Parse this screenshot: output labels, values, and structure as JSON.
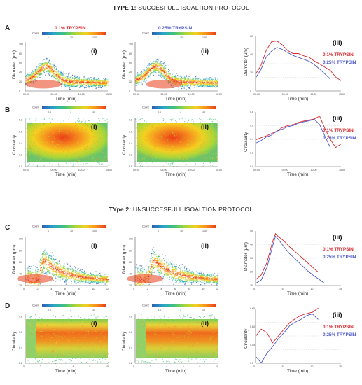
{
  "titles": {
    "type1_bold": "TYPE 1:",
    "type1_rest": " SUCCESFULL ISOALTION PROTOCOL",
    "type2_bold": "TYpe 2:",
    "type2_rest": " UNSUCCESFULL ISOALTION PROTOCOL"
  },
  "rows": [
    {
      "letter": "A"
    },
    {
      "letter": "B"
    },
    {
      "letter": "C"
    },
    {
      "letter": "D"
    }
  ],
  "headers": {
    "red": "0.1% TRYPSIN",
    "blue": "0.25% TRYPSIN"
  },
  "colors": {
    "red": "#d8262b",
    "blue": "#4b56c8"
  },
  "colorbar": {
    "label": "Count",
    "ticks_A": [
      "1",
      "10",
      "100"
    ],
    "ticks_B": [
      "0.1",
      "1",
      "10"
    ],
    "colors": [
      "#2b5fb0",
      "#2aa6c9",
      "#43c27b",
      "#a9d63a",
      "#f4d020",
      "#f6901e",
      "#ea3d17"
    ]
  },
  "panel_labels": {
    "i": "(i)",
    "ii": "(ii)",
    "iii": "(iii)"
  },
  "legend": {
    "red": "0.1% TRYPSIN",
    "blue": "0.25% TRYPSIN"
  },
  "chart_data": [
    {
      "id": "A",
      "type": "heatmap",
      "xlabel": "Time (min)",
      "ylabel": "Diameter (μm)",
      "xticks_1": [
        "00:00",
        "05:00",
        "10:00",
        "15:00"
      ],
      "yticks": [
        "0",
        "20",
        "40",
        "60",
        "80",
        "100"
      ],
      "ylim": [
        0,
        100
      ],
      "xlim": [
        0,
        16
      ],
      "ridge_1": {
        "x": [
          0,
          1,
          2,
          3,
          4,
          6,
          8,
          10,
          12,
          14,
          16
        ],
        "y": [
          18,
          22,
          40,
          48,
          40,
          32,
          28,
          26,
          24,
          23,
          22
        ]
      },
      "ridge_2": {
        "x": [
          0,
          2,
          4,
          6,
          8,
          10,
          12,
          14,
          16
        ],
        "y": [
          20,
          22,
          24,
          26,
          26,
          25,
          24,
          22,
          20
        ]
      },
      "line": {
        "xticks": [
          "00:00",
          "05:00",
          "10:00",
          "15:00"
        ],
        "yticks": [
          "0",
          "20",
          "40",
          "60"
        ],
        "ylim": [
          0,
          65
        ],
        "xlim": [
          0,
          16
        ],
        "series": [
          {
            "name": "0.1% TRYPSIN",
            "x": [
              0,
              1,
              2,
              3,
              4,
              5,
              6,
              7,
              8,
              9,
              10,
              11,
              12,
              13,
              14,
              15,
              16
            ],
            "y": [
              20,
              30,
              48,
              58,
              60,
              55,
              48,
              45,
              44,
              42,
              40,
              36,
              32,
              28,
              24,
              16,
              12
            ]
          },
          {
            "name": "0.25% TRYPSIN",
            "x": [
              0,
              1,
              2,
              3,
              4,
              5,
              6,
              7,
              8,
              9,
              10,
              11,
              12,
              13,
              14
            ],
            "y": [
              16,
              26,
              40,
              48,
              52,
              50,
              46,
              42,
              40,
              38,
              36,
              32,
              26,
              20,
              14
            ]
          }
        ]
      }
    },
    {
      "id": "B",
      "type": "heatmap",
      "xlabel": "Time (min)",
      "ylabel": "Circularity",
      "xticks_1": [
        "00:00",
        "05:00",
        "10:00",
        "15:00"
      ],
      "yticks": [
        "0.0",
        "0.2",
        "0.4",
        "0.6",
        "0.8"
      ],
      "ylim": [
        0,
        0.9
      ],
      "xlim": [
        0,
        16
      ],
      "line": {
        "xticks": [
          "00:00",
          "05:00",
          "10:00",
          "15:00"
        ],
        "yticks": [
          "0.0",
          "0.2",
          "0.4",
          "0.6",
          "0.8"
        ],
        "ylim": [
          0,
          0.85
        ],
        "xlim": [
          0,
          16
        ],
        "series": [
          {
            "name": "0.1% TRYPSIN",
            "x": [
              0,
              1,
              2,
              3,
              4,
              5,
              6,
              7,
              8,
              9,
              10,
              11,
              12,
              13,
              14,
              15,
              16
            ],
            "y": [
              0.42,
              0.44,
              0.47,
              0.52,
              0.56,
              0.6,
              0.63,
              0.66,
              0.69,
              0.71,
              0.73,
              0.74,
              0.78,
              0.6,
              0.42,
              0.3,
              0.36
            ]
          },
          {
            "name": "0.25% TRYPSIN",
            "x": [
              0,
              1,
              2,
              3,
              4,
              5,
              6,
              7,
              8,
              9,
              10,
              11,
              12,
              13,
              14
            ],
            "y": [
              0.36,
              0.4,
              0.46,
              0.5,
              0.55,
              0.58,
              0.62,
              0.64,
              0.67,
              0.69,
              0.72,
              0.74,
              0.66,
              0.48,
              0.3
            ]
          }
        ]
      }
    },
    {
      "id": "C",
      "type": "heatmap",
      "xlabel": "Time (min)",
      "ylabel": "Diameter (μm)",
      "xticks_1": [
        "0",
        "2",
        "4",
        "6",
        "8",
        "10",
        "12"
      ],
      "yticks": [
        "20",
        "40",
        "60",
        "80",
        "100"
      ],
      "ylim": [
        0,
        100
      ],
      "xlim": [
        0,
        13
      ],
      "line": {
        "xticks": [
          "0",
          "5",
          "10",
          "15"
        ],
        "yticks": [
          "10",
          "20",
          "30",
          "40",
          "50"
        ],
        "ylim": [
          10,
          52
        ],
        "xlim": [
          0,
          15
        ],
        "series": [
          {
            "name": "0.1% TRYPSIN",
            "x": [
              0,
              1,
              2,
              3,
              3.5,
              4,
              5,
              6,
              7,
              8,
              9,
              10,
              11
            ],
            "y": [
              14,
              18,
              28,
              44,
              50,
              48,
              44,
              40,
              36,
              32,
              28,
              24,
              20
            ]
          },
          {
            "name": "0.25% TRYPSIN",
            "x": [
              0,
              1,
              2,
              3,
              3.5,
              4,
              5,
              6,
              7,
              8,
              9,
              10,
              11,
              12
            ],
            "y": [
              12,
              14,
              24,
              40,
              48,
              46,
              40,
              34,
              30,
              26,
              22,
              18,
              15,
              12
            ]
          }
        ]
      }
    },
    {
      "id": "D",
      "type": "heatmap",
      "xlabel": "Time (min)",
      "ylabel": "Circularity",
      "xticks_1": [
        "0",
        "2",
        "4",
        "6",
        "8",
        "10"
      ],
      "yticks": [
        "0.2",
        "0.4",
        "0.6",
        "0.8"
      ],
      "ylim": [
        0,
        0.9
      ],
      "xlim": [
        0,
        12
      ],
      "line": {
        "xticks": [
          "0",
          "5",
          "10",
          "15"
        ],
        "yticks": [
          "0.5",
          "0.55",
          "0.60",
          "0.65"
        ],
        "ylim": [
          0.5,
          0.66
        ],
        "xlim": [
          0,
          15
        ],
        "series": [
          {
            "name": "0.1% TRYPSIN",
            "x": [
              0,
              1,
              2,
              3,
              4,
              5,
              6,
              7,
              8,
              9,
              10,
              11
            ],
            "y": [
              0.58,
              0.6,
              0.59,
              0.56,
              0.58,
              0.6,
              0.62,
              0.63,
              0.64,
              0.645,
              0.65,
              0.66
            ]
          },
          {
            "name": "0.25% TRYPSIN",
            "x": [
              0,
              1,
              2,
              3,
              4,
              5,
              6,
              7,
              8,
              9,
              10,
              11
            ],
            "y": [
              0.52,
              0.5,
              0.53,
              0.55,
              0.57,
              0.59,
              0.61,
              0.62,
              0.63,
              0.64,
              0.645,
              0.63
            ]
          }
        ]
      }
    }
  ]
}
